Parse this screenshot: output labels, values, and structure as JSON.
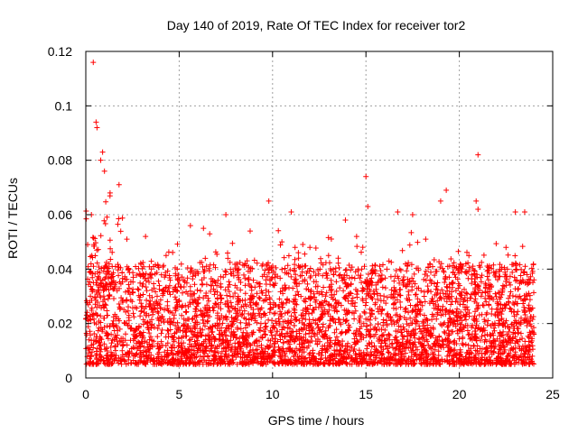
{
  "chart_data": {
    "type": "scatter",
    "title": "Day 140 of 2019, Rate Of TEC Index for receiver tor2",
    "xlabel": "GPS time / hours",
    "ylabel": "ROTI / TECUs",
    "xlim": [
      0,
      25
    ],
    "ylim": [
      0,
      0.12
    ],
    "x_ticks": [
      0,
      5,
      10,
      15,
      20,
      25
    ],
    "x_tick_labels": [
      "0",
      "5",
      "10",
      "15",
      "20",
      "25"
    ],
    "y_ticks": [
      0,
      0.02,
      0.04,
      0.06,
      0.08,
      0.1,
      0.12
    ],
    "y_tick_labels": [
      "0",
      "0.02",
      "0.04",
      "0.06",
      "0.08",
      "0.1",
      "0.12"
    ],
    "grid": true,
    "marker": "+",
    "series": [
      {
        "name": "tor2",
        "color": "#ff0000",
        "points": [
          [
            0.4,
            0.116
          ],
          [
            0.55,
            0.094
          ],
          [
            0.6,
            0.092
          ],
          [
            0.9,
            0.083
          ],
          [
            0.8,
            0.08
          ],
          [
            1.0,
            0.076
          ],
          [
            1.3,
            0.068
          ],
          [
            0.3,
            0.06
          ],
          [
            0.1,
            0.049
          ],
          [
            2.2,
            0.051
          ],
          [
            3.2,
            0.052
          ],
          [
            5.6,
            0.056
          ],
          [
            7.5,
            0.06
          ],
          [
            9.8,
            0.065
          ],
          [
            11.0,
            0.061
          ],
          [
            13.9,
            0.058
          ],
          [
            15.0,
            0.074
          ],
          [
            15.1,
            0.063
          ],
          [
            16.7,
            0.061
          ],
          [
            17.5,
            0.06
          ],
          [
            19.3,
            0.069
          ],
          [
            19.0,
            0.065
          ],
          [
            21.0,
            0.082
          ],
          [
            20.9,
            0.065
          ],
          [
            21.0,
            0.062
          ],
          [
            23.0,
            0.061
          ],
          [
            23.5,
            0.061
          ],
          [
            12.0,
            0.048
          ],
          [
            4.3,
            0.045
          ],
          [
            6.3,
            0.055
          ],
          [
            8.8,
            0.054
          ],
          [
            10.5,
            0.05
          ],
          [
            14.5,
            0.052
          ],
          [
            18.2,
            0.051
          ],
          [
            22.5,
            0.048
          ]
        ],
        "band": {
          "x_range": [
            0,
            24
          ],
          "typical_range": [
            0.005,
            0.035
          ],
          "min_value": 0.002,
          "note": "dense cloud of measurements across the whole day"
        }
      }
    ]
  }
}
